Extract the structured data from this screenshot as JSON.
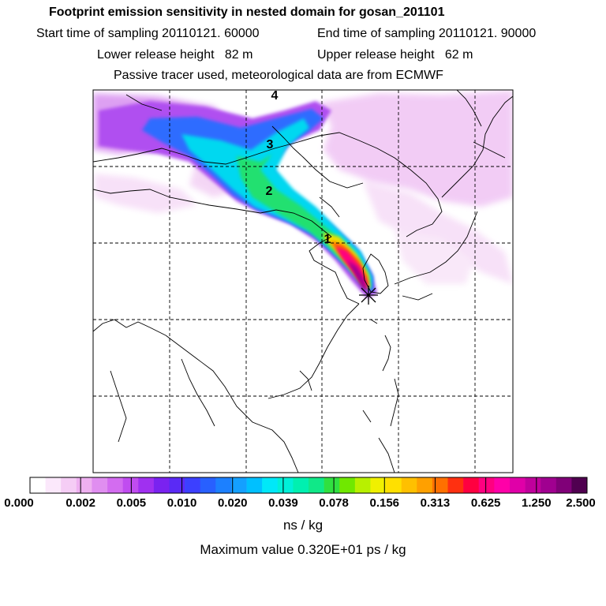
{
  "header": {
    "title": "Footprint emission sensitivity in nested domain for gosan_201101",
    "start_label": "Start time of sampling 20110121. 60000",
    "end_label": "End time of sampling 20110121. 90000",
    "lower_label": "Lower release height   82 m",
    "upper_label": "Upper release height   62 m",
    "tracer_label": "Passive tracer used, meteorological data are from ECMWF"
  },
  "map": {
    "day_markers": [
      "4",
      "3",
      "2",
      "1"
    ],
    "receptor": "Gosan"
  },
  "colorbar": {
    "colors": [
      "#ffffff",
      "#fbe8fb",
      "#f5cdf5",
      "#eeb0f0",
      "#e08ef0",
      "#d36cf0",
      "#c04cf0",
      "#a030f0",
      "#7a22f0",
      "#5a2af5",
      "#3c40ff",
      "#2860ff",
      "#1c80ff",
      "#14a0ff",
      "#00c0ff",
      "#00e8f8",
      "#00f0d8",
      "#00f0b0",
      "#10e888",
      "#30e040",
      "#70e800",
      "#b8f000",
      "#f0f000",
      "#ffe000",
      "#ffc000",
      "#ffa000",
      "#ff7000",
      "#ff3010",
      "#ff0040",
      "#ff0080",
      "#ff00a8",
      "#e000a8",
      "#c0009c",
      "#a00090",
      "#800078",
      "#500050"
    ],
    "ticks": [
      "0.000",
      "0.002",
      "0.005",
      "0.010",
      "0.020",
      "0.039",
      "0.078",
      "0.156",
      "0.313",
      "0.625",
      "1.250",
      "2.500"
    ],
    "units": "ns / kg"
  },
  "maximum": "Maximum value  0.320E+01 ps / kg"
}
